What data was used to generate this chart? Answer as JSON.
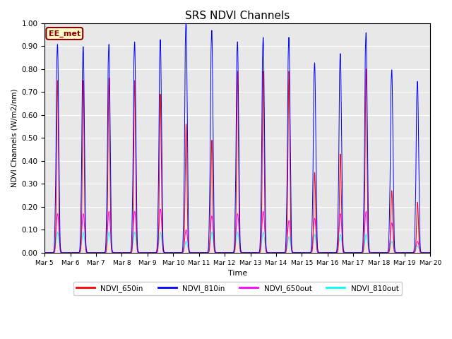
{
  "title": "SRS NDVI Channels",
  "xlabel": "Time",
  "ylabel": "NDVI Channels (W/m2/nm)",
  "ylim": [
    0.0,
    1.0
  ],
  "background_color": "#e8e8e8",
  "annotation_text": "EE_met",
  "legend_labels": [
    "NDVI_650in",
    "NDVI_810in",
    "NDVI_650out",
    "NDVI_810out"
  ],
  "line_colors": [
    "red",
    "blue",
    "magenta",
    "cyan"
  ],
  "xtick_labels": [
    "Mar 5",
    "Mar 6",
    "Mar 7",
    "Mar 8",
    "Mar 9",
    "Mar 10",
    "Mar 11",
    "Mar 12",
    "Mar 13",
    "Mar 14",
    "Mar 15",
    "Mar 16",
    "Mar 17",
    "Mar 18",
    "Mar 19",
    "Mar 20"
  ],
  "day_peaks_650in": [
    0.75,
    0.75,
    0.76,
    0.75,
    0.69,
    0.56,
    0.49,
    0.79,
    0.79,
    0.79,
    0.35,
    0.43,
    0.8,
    0.27,
    0.22
  ],
  "day_peaks_810in": [
    0.9,
    0.89,
    0.9,
    0.91,
    0.92,
    1.0,
    0.96,
    0.91,
    0.93,
    0.93,
    0.82,
    0.86,
    0.95,
    0.79,
    0.74
  ],
  "day_peaks_650out": [
    0.17,
    0.17,
    0.18,
    0.18,
    0.19,
    0.1,
    0.16,
    0.17,
    0.18,
    0.14,
    0.15,
    0.17,
    0.18,
    0.13,
    0.05
  ],
  "day_peaks_810out": [
    0.09,
    0.09,
    0.09,
    0.09,
    0.09,
    0.05,
    0.09,
    0.09,
    0.09,
    0.07,
    0.08,
    0.08,
    0.08,
    0.05,
    0.03
  ],
  "n_days": 15,
  "yticks": [
    0.0,
    0.1,
    0.2,
    0.3,
    0.4,
    0.5,
    0.6,
    0.7,
    0.8,
    0.9,
    1.0
  ]
}
